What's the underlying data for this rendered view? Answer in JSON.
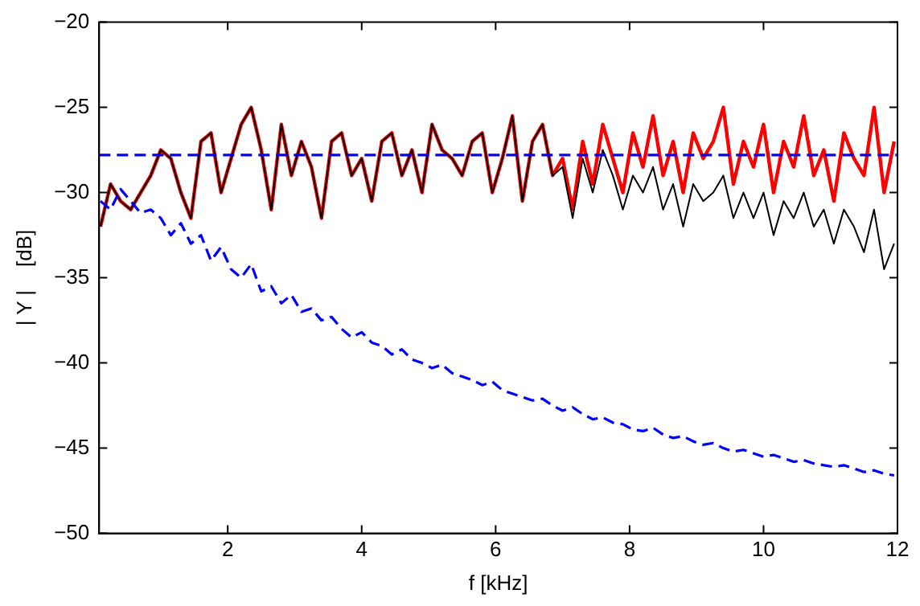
{
  "chart_data": {
    "type": "line",
    "xlabel": "f [kHz]",
    "ylabel": "| Y |    [dB]",
    "xlim": [
      0.08,
      12
    ],
    "ylim": [
      -50,
      -20
    ],
    "xticks": [
      2,
      4,
      6,
      8,
      10,
      12
    ],
    "yticks": [
      {
        "value": -50,
        "label": "−50"
      },
      {
        "value": -45,
        "label": "−45"
      },
      {
        "value": -40,
        "label": "−40"
      },
      {
        "value": -35,
        "label": "−35"
      },
      {
        "value": -30,
        "label": "−30"
      },
      {
        "value": -25,
        "label": "−25"
      },
      {
        "value": -20,
        "label": "−20"
      }
    ],
    "x": [
      0.1,
      0.25,
      0.4,
      0.55,
      0.7,
      0.85,
      1,
      1.15,
      1.3,
      1.45,
      1.6,
      1.75,
      1.9,
      2.05,
      2.2,
      2.35,
      2.5,
      2.65,
      2.8,
      2.95,
      3.1,
      3.25,
      3.4,
      3.55,
      3.7,
      3.85,
      4,
      4.15,
      4.3,
      4.45,
      4.6,
      4.75,
      4.9,
      5.05,
      5.2,
      5.35,
      5.5,
      5.65,
      5.8,
      5.95,
      6.1,
      6.25,
      6.4,
      6.55,
      6.7,
      6.85,
      7,
      7.15,
      7.3,
      7.45,
      7.6,
      7.75,
      7.9,
      8.05,
      8.2,
      8.35,
      8.5,
      8.65,
      8.8,
      8.95,
      9.1,
      9.25,
      9.4,
      9.55,
      9.7,
      9.85,
      10,
      10.15,
      10.3,
      10.45,
      10.6,
      10.75,
      10.9,
      11.05,
      11.2,
      11.35,
      11.5,
      11.65,
      11.8,
      11.95
    ],
    "series": [
      {
        "color": "#ff0000",
        "line_style": "solid",
        "values": [
          -32,
          -29.5,
          -30.5,
          -31,
          -30,
          -29,
          -27.5,
          -28,
          -30,
          -31.5,
          -27,
          -26.5,
          -30,
          -28,
          -26,
          -25,
          -27.5,
          -31,
          -26,
          -29,
          -27,
          -28.5,
          -31.5,
          -27,
          -26.5,
          -29,
          -28,
          -30.5,
          -27,
          -26.5,
          -29,
          -27.5,
          -30,
          -26,
          -27.5,
          -28,
          -29,
          -27,
          -26.5,
          -30,
          -28,
          -25.5,
          -30.5,
          -27,
          -26,
          -29,
          -28,
          -31,
          -27,
          -29.5,
          -26,
          -28,
          -30,
          -26.5,
          -28.5,
          -25.5,
          -29,
          -27,
          -30,
          -26.5,
          -28,
          -27,
          -25,
          -29.5,
          -27,
          -28.5,
          -26,
          -30,
          -27,
          -28.5,
          -25.5,
          -29,
          -27.5,
          -30.5,
          -26.5,
          -28,
          -29,
          -25,
          -30,
          -27
        ]
      },
      {
        "color": "#000000",
        "line_style": "solid",
        "values": [
          -32,
          -29.5,
          -30.5,
          -31,
          -30,
          -29,
          -27.5,
          -28,
          -30,
          -31.5,
          -27,
          -26.5,
          -30,
          -28,
          -26,
          -25,
          -27.5,
          -31,
          -26,
          -29,
          -27,
          -28.5,
          -31.5,
          -27,
          -26.5,
          -29,
          -28,
          -30.5,
          -27,
          -26.5,
          -29,
          -27.5,
          -30,
          -26,
          -27.5,
          -28,
          -29,
          -27,
          -26.5,
          -30,
          -28,
          -25.5,
          -30.5,
          -27,
          -26,
          -29,
          -28.5,
          -31.5,
          -28,
          -30,
          -27.5,
          -29,
          -31,
          -29,
          -30,
          -28.5,
          -31,
          -29.5,
          -32,
          -29.5,
          -30.5,
          -30,
          -29,
          -31.5,
          -30,
          -31.5,
          -30,
          -32.5,
          -30.5,
          -31.5,
          -30,
          -32,
          -31,
          -33,
          -31,
          -32,
          -33.5,
          -31,
          -34.5,
          -33
        ]
      },
      {
        "color": "#0000ff",
        "line_style": "dashed",
        "values": [
          -30.5,
          -31,
          -29.8,
          -30.5,
          -31.2,
          -31,
          -31.5,
          -32.5,
          -31.8,
          -33,
          -32.5,
          -34,
          -33.2,
          -34.5,
          -35,
          -34.2,
          -35.8,
          -35.5,
          -36.5,
          -36,
          -37,
          -36.8,
          -37.5,
          -37.3,
          -38,
          -38.5,
          -38.2,
          -38.8,
          -39,
          -39.5,
          -39.2,
          -39.8,
          -40,
          -40.3,
          -40.1,
          -40.6,
          -40.8,
          -41,
          -41.3,
          -41.1,
          -41.6,
          -41.8,
          -42,
          -42.2,
          -42.1,
          -42.5,
          -42.8,
          -42.6,
          -43,
          -43.3,
          -43.2,
          -43.5,
          -43.6,
          -43.9,
          -44,
          -43.8,
          -44.2,
          -44.4,
          -44.3,
          -44.6,
          -44.8,
          -44.7,
          -45,
          -45.2,
          -45.1,
          -45.3,
          -45.5,
          -45.4,
          -45.6,
          -45.8,
          -45.7,
          -45.9,
          -46,
          -46.1,
          -46,
          -46.2,
          -46.4,
          -46.3,
          -46.5,
          -46.6
        ]
      }
    ],
    "ref_lines": [
      {
        "axis": "y",
        "value": -27.8,
        "color": "#0000ff",
        "line_style": "dashed"
      }
    ],
    "grid": false,
    "legend": false,
    "marker": "none"
  }
}
